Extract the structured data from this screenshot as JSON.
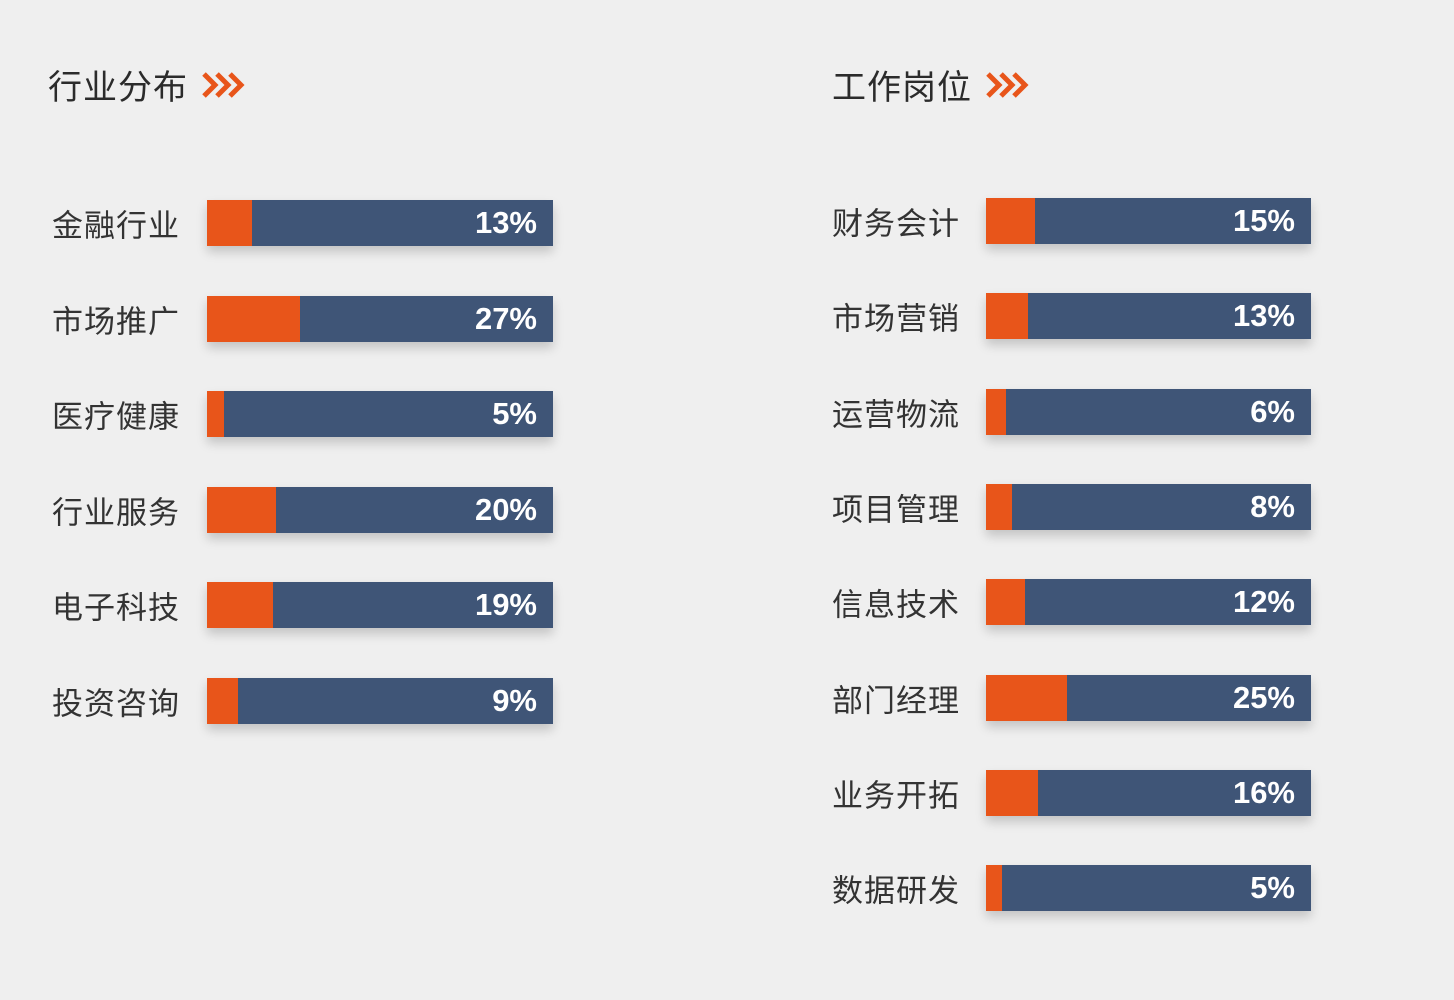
{
  "colors": {
    "accent": "#e8551a",
    "bar": "#3f5577",
    "background": "#efefef"
  },
  "chart_data": [
    {
      "type": "bar",
      "title": "行业分布",
      "title_icon": "double-chevron-right-icon",
      "categories": [
        "金融行业",
        "市场推广",
        "医疗健康",
        "行业服务",
        "电子科技",
        "投资咨询"
      ],
      "values": [
        13,
        27,
        5,
        20,
        19,
        9
      ],
      "labels": [
        "13%",
        "27%",
        "5%",
        "20%",
        "19%",
        "9%"
      ],
      "unit": "%",
      "orientation": "horizontal",
      "ylim": [
        0,
        100
      ]
    },
    {
      "type": "bar",
      "title": "工作岗位",
      "title_icon": "double-chevron-right-icon",
      "categories": [
        "财务会计",
        "市场营销",
        "运营物流",
        "项目管理",
        "信息技术",
        "部门经理",
        "业务开拓",
        "数据研发"
      ],
      "values": [
        15,
        13,
        6,
        8,
        12,
        25,
        16,
        5
      ],
      "labels": [
        "15%",
        "13%",
        "6%",
        "8%",
        "12%",
        "25%",
        "16%",
        "5%"
      ],
      "unit": "%",
      "orientation": "horizontal",
      "ylim": [
        0,
        100
      ]
    }
  ]
}
